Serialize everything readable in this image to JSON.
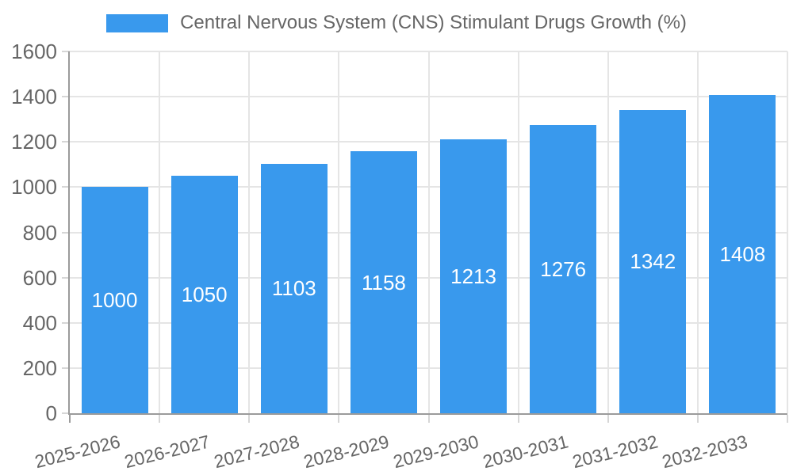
{
  "chart_data": {
    "type": "bar",
    "title": "Central Nervous System (CNS) Stimulant Drugs Growth (%)",
    "categories": [
      "2025-2026",
      "2026-2027",
      "2027-2028",
      "2028-2029",
      "2029-2030",
      "2030-2031",
      "2031-2032",
      "2032-2033"
    ],
    "values": [
      1000,
      1050,
      1103,
      1158,
      1213,
      1276,
      1342,
      1408
    ],
    "ylim": [
      0,
      1600
    ],
    "ytick_step": 200,
    "ytick_labels": [
      "0",
      "200",
      "400",
      "600",
      "800",
      "1000",
      "1200",
      "1400",
      "1600"
    ],
    "legend_position": "top",
    "grid": true,
    "colors": {
      "bar": "#3999ED",
      "bar_label_text": "#FFFFFF",
      "axis_text": "#666666",
      "gridline": "#E5E5E5",
      "axis_line": "#9B9B9B",
      "tick_mark": "#D6D6D6"
    }
  }
}
